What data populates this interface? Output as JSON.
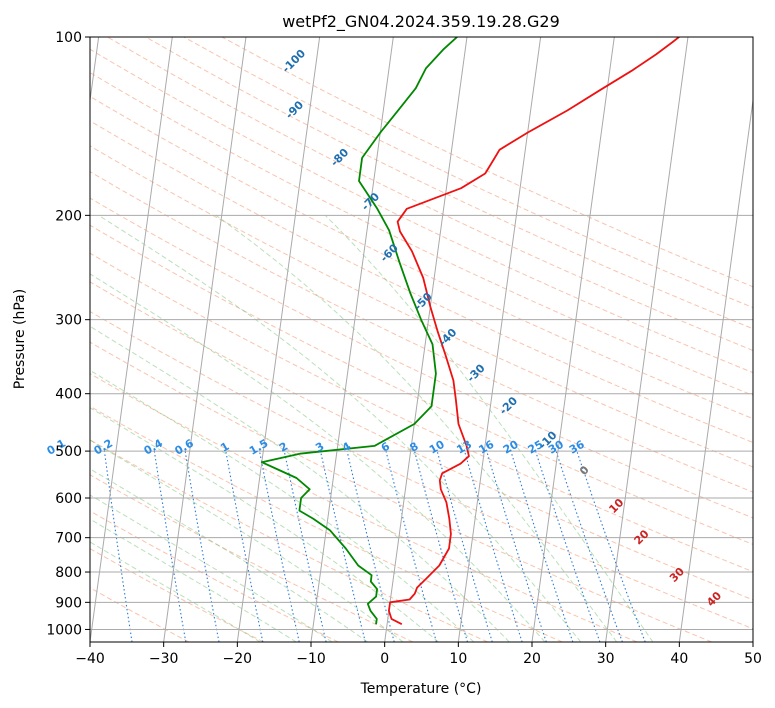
{
  "chart_data": {
    "type": "line",
    "subtype": "skew-T log-P diagram",
    "title": "wetPf2_GN04.2024.359.19.28.G29",
    "xlabel": "Temperature (°C)",
    "ylabel": "Pressure (hPa)",
    "xlim": [
      -40,
      50
    ],
    "ylim": [
      1050,
      100
    ],
    "y_scale": "log",
    "x_ticks": [
      -40,
      -30,
      -20,
      -10,
      0,
      10,
      20,
      30,
      40,
      50
    ],
    "y_ticks": [
      1000,
      900,
      800,
      700,
      600,
      500,
      400,
      300,
      200,
      100
    ],
    "grid": true,
    "series": [
      {
        "role": "temperature",
        "color": "#ee1111",
        "points": [
          [
            2,
            980
          ],
          [
            0.5,
            960
          ],
          [
            0,
            930
          ],
          [
            0,
            900
          ],
          [
            2.6,
            890
          ],
          [
            3.2,
            870
          ],
          [
            3.4,
            850
          ],
          [
            4.5,
            820
          ],
          [
            6,
            780
          ],
          [
            7,
            730
          ],
          [
            7,
            690
          ],
          [
            6.5,
            650
          ],
          [
            5.8,
            610
          ],
          [
            4.8,
            580
          ],
          [
            4.5,
            560
          ],
          [
            4.7,
            545
          ],
          [
            7,
            525
          ],
          [
            8,
            510
          ],
          [
            7.5,
            490
          ],
          [
            6,
            450
          ],
          [
            5.2,
            410
          ],
          [
            4.5,
            380
          ],
          [
            3,
            345
          ],
          [
            1.5,
            315
          ],
          [
            0,
            285
          ],
          [
            -1.5,
            255
          ],
          [
            -3.5,
            230
          ],
          [
            -5.5,
            213
          ],
          [
            -6,
            205
          ],
          [
            -5,
            195
          ],
          [
            2,
            180
          ],
          [
            5,
            170
          ],
          [
            6,
            160
          ],
          [
            6.5,
            155
          ],
          [
            10,
            145
          ],
          [
            15,
            133
          ],
          [
            19,
            123
          ],
          [
            23,
            114
          ],
          [
            26,
            107
          ],
          [
            28,
            102
          ],
          [
            30,
            97
          ]
        ]
      },
      {
        "role": "dewpoint",
        "color": "#008800",
        "points": [
          [
            -1.5,
            980
          ],
          [
            -1.5,
            960
          ],
          [
            -2.5,
            930
          ],
          [
            -3,
            905
          ],
          [
            -2,
            880
          ],
          [
            -2,
            855
          ],
          [
            -3,
            830
          ],
          [
            -3,
            810
          ],
          [
            -5,
            780
          ],
          [
            -7,
            730
          ],
          [
            -9.5,
            680
          ],
          [
            -12,
            650
          ],
          [
            -14,
            630
          ],
          [
            -14,
            600
          ],
          [
            -13,
            580
          ],
          [
            -15,
            555
          ],
          [
            -18,
            535
          ],
          [
            -20,
            522
          ],
          [
            -15,
            505
          ],
          [
            -5,
            490
          ],
          [
            0,
            450
          ],
          [
            2,
            420
          ],
          [
            2,
            370
          ],
          [
            1,
            330
          ],
          [
            -1,
            300
          ],
          [
            -3,
            270
          ],
          [
            -5,
            240
          ],
          [
            -7,
            212
          ],
          [
            -9,
            195
          ],
          [
            -12,
            175
          ],
          [
            -12,
            160
          ],
          [
            -10,
            145
          ],
          [
            -8,
            133
          ],
          [
            -6,
            122
          ],
          [
            -5,
            113
          ],
          [
            -3,
            105
          ],
          [
            -1,
            99
          ]
        ]
      }
    ],
    "dry_adiabats": [
      -30,
      -20,
      -10,
      0,
      10,
      20,
      30,
      40,
      50,
      60,
      70,
      80,
      90,
      100,
      110,
      120,
      130,
      140,
      150,
      160,
      170,
      180,
      190
    ],
    "moist_adiabats": [
      -20,
      -15,
      -10,
      -5,
      0,
      5,
      10,
      15,
      20,
      25,
      30,
      35
    ],
    "mixing_ratio_lines": [
      0.1,
      0.2,
      0.4,
      0.6,
      1,
      1.5,
      2,
      3,
      4,
      6,
      8,
      10,
      13,
      16,
      20,
      25,
      30,
      36
    ],
    "annotations": {
      "blue": [
        {
          "text": "-100",
          "T": -23,
          "p": 110
        },
        {
          "text": "-90",
          "T": -22,
          "p": 133
        },
        {
          "text": "-80",
          "T": -15,
          "p": 160
        },
        {
          "text": "-70",
          "T": -10,
          "p": 190
        },
        {
          "text": "-60",
          "T": -6.5,
          "p": 232
        },
        {
          "text": "-50",
          "T": -1,
          "p": 280
        },
        {
          "text": "-40",
          "T": 3,
          "p": 322
        },
        {
          "text": "-30",
          "T": 7.5,
          "p": 370
        },
        {
          "text": "-20",
          "T": 12.5,
          "p": 420
        },
        {
          "text": "-10",
          "T": 18.5,
          "p": 480
        }
      ],
      "gray": [
        {
          "text": "0",
          "T": 24,
          "p": 540
        }
      ],
      "red": [
        {
          "text": "10",
          "T": 29,
          "p": 620
        },
        {
          "text": "20",
          "T": 33,
          "p": 700
        },
        {
          "text": "30",
          "T": 38.5,
          "p": 810
        },
        {
          "text": "40",
          "T": 44,
          "p": 890
        }
      ],
      "mixing_ratio_labels": [
        "0.1",
        "0.2",
        "0.4",
        "0.6",
        "1",
        "1.5",
        "2",
        "3",
        "4",
        "6",
        "8",
        "10",
        "13",
        "16",
        "20",
        "25",
        "30",
        "36"
      ]
    }
  }
}
